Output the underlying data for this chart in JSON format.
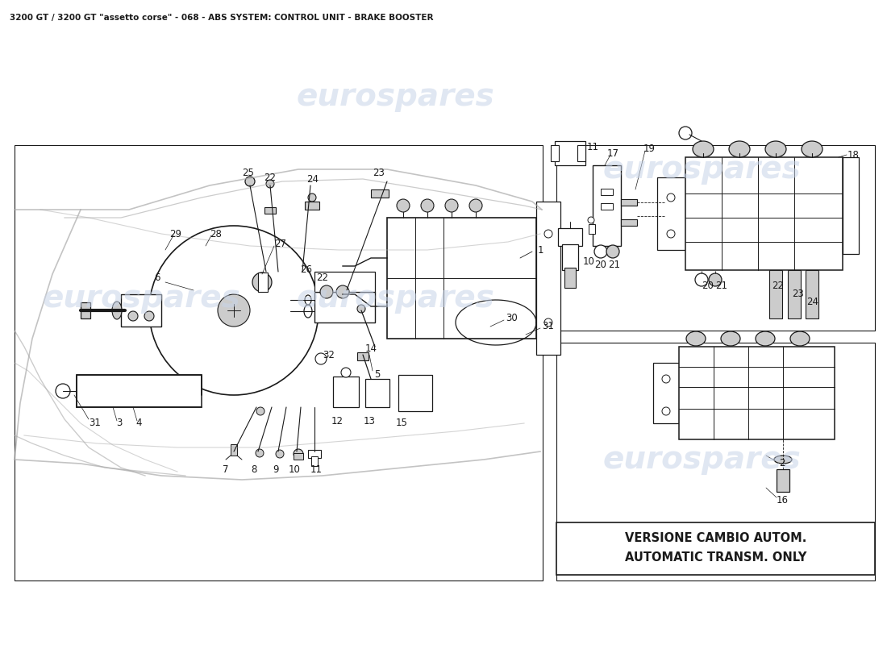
{
  "title": "3200 GT / 3200 GT \"assetto corse\" - 068 - ABS SYSTEM: CONTROL UNIT - BRAKE BOOSTER",
  "bg_color": "#ffffff",
  "line_color": "#1a1a1a",
  "gray_color": "#aaaaaa",
  "light_gray": "#cccccc",
  "watermark_color": "#c8d4e8",
  "watermark_text": "eurospares",
  "versione_line1": "VERSIONE CAMBIO AUTOM.",
  "versione_line2": "AUTOMATIC TRANSM. ONLY",
  "title_fontsize": 7.5,
  "label_fs": 8.5,
  "versione_fs": 9.5,
  "wm_fs": 28
}
